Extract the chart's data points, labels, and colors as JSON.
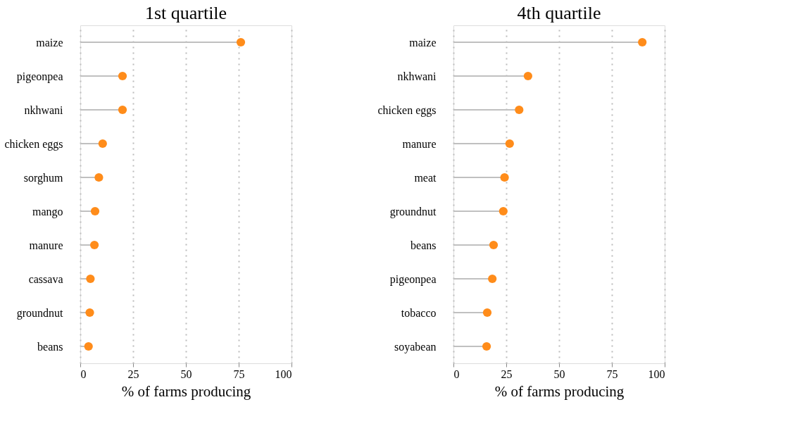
{
  "chart_data": [
    {
      "type": "lollipop",
      "title": "1st quartile",
      "orientation": "horizontal",
      "xlabel": "% of farms producing",
      "categories": [
        "maize",
        "pigeonpea",
        "nkhwani",
        "chicken eggs",
        "sorghum",
        "mango",
        "manure",
        "cassava",
        "groundnut",
        "beans"
      ],
      "series": [
        {
          "color": "#ff8c1a",
          "values": [
            76,
            20,
            20,
            10.6,
            8.8,
            7,
            6.7,
            4.8,
            4.5,
            3.9
          ]
        }
      ],
      "xlim": [
        0,
        100
      ],
      "xticks": [
        0,
        25,
        50,
        75,
        100
      ],
      "grid": "x",
      "marker": "circle"
    },
    {
      "type": "lollipop",
      "title": "4th quartile",
      "orientation": "horizontal",
      "xlabel": "% of farms producing",
      "categories": [
        "maize",
        "nkhwani",
        "chicken eggs",
        "manure",
        "meat",
        "groundnut",
        "beans",
        "pigeonpea",
        "tobacco",
        "soyabean"
      ],
      "series": [
        {
          "color": "#ff8c1a",
          "values": [
            89.4,
            35.3,
            31.1,
            26.6,
            24.2,
            23.6,
            19,
            18.4,
            16,
            15.7
          ]
        }
      ],
      "xlim": [
        0,
        100
      ],
      "xticks": [
        0,
        25,
        50,
        75,
        100
      ],
      "grid": "x",
      "marker": "circle"
    }
  ]
}
